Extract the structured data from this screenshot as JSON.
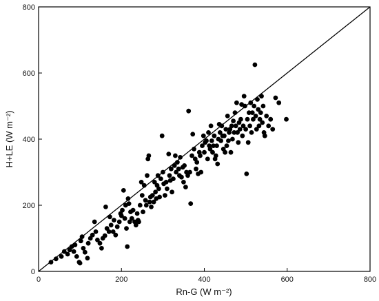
{
  "chart_data": {
    "type": "scatter",
    "title": "",
    "xlabel": "Rn-G (W m⁻²)",
    "ylabel": "H+LE (W m⁻²)",
    "xlim": [
      0,
      800
    ],
    "ylim": [
      0,
      800
    ],
    "xticks": [
      0,
      200,
      400,
      600,
      800
    ],
    "yticks": [
      0,
      200,
      400,
      600,
      800
    ],
    "grid": false,
    "legend": "none",
    "reference_line": {
      "type": "1:1",
      "from": [
        0,
        0
      ],
      "to": [
        800,
        800
      ]
    },
    "point_color": "#000000",
    "series": [
      {
        "points": [
          [
            30,
            28
          ],
          [
            42,
            38
          ],
          [
            55,
            45
          ],
          [
            62,
            60
          ],
          [
            70,
            52
          ],
          [
            75,
            65
          ],
          [
            80,
            75
          ],
          [
            85,
            60
          ],
          [
            88,
            80
          ],
          [
            92,
            45
          ],
          [
            98,
            28
          ],
          [
            100,
            25
          ],
          [
            102,
            92
          ],
          [
            105,
            105
          ],
          [
            108,
            70
          ],
          [
            112,
            58
          ],
          [
            118,
            40
          ],
          [
            120,
            85
          ],
          [
            125,
            100
          ],
          [
            130,
            110
          ],
          [
            135,
            150
          ],
          [
            138,
            120
          ],
          [
            142,
            95
          ],
          [
            148,
            85
          ],
          [
            152,
            70
          ],
          [
            155,
            100
          ],
          [
            160,
            108
          ],
          [
            162,
            195
          ],
          [
            165,
            130
          ],
          [
            170,
            120
          ],
          [
            172,
            165
          ],
          [
            175,
            140
          ],
          [
            180,
            120
          ],
          [
            182,
            155
          ],
          [
            186,
            110
          ],
          [
            190,
            135
          ],
          [
            195,
            150
          ],
          [
            198,
            175
          ],
          [
            200,
            168
          ],
          [
            202,
            185
          ],
          [
            205,
            245
          ],
          [
            208,
            160
          ],
          [
            210,
            200
          ],
          [
            212,
            130
          ],
          [
            214,
            75
          ],
          [
            216,
            220
          ],
          [
            218,
            205
          ],
          [
            220,
            150
          ],
          [
            222,
            180
          ],
          [
            225,
            160
          ],
          [
            228,
            185
          ],
          [
            232,
            150
          ],
          [
            235,
            140
          ],
          [
            238,
            175
          ],
          [
            240,
            155
          ],
          [
            242,
            150
          ],
          [
            245,
            200
          ],
          [
            248,
            270
          ],
          [
            250,
            230
          ],
          [
            252,
            180
          ],
          [
            255,
            260
          ],
          [
            258,
            215
          ],
          [
            260,
            200
          ],
          [
            262,
            290
          ],
          [
            264,
            340
          ],
          [
            266,
            350
          ],
          [
            268,
            210
          ],
          [
            270,
            225
          ],
          [
            272,
            195
          ],
          [
            275,
            230
          ],
          [
            278,
            210
          ],
          [
            280,
            270
          ],
          [
            282,
            240
          ],
          [
            284,
            220
          ],
          [
            286,
            260
          ],
          [
            288,
            290
          ],
          [
            290,
            250
          ],
          [
            292,
            225
          ],
          [
            295,
            280
          ],
          [
            298,
            410
          ],
          [
            300,
            300
          ],
          [
            302,
            265
          ],
          [
            305,
            230
          ],
          [
            308,
            270
          ],
          [
            310,
            250
          ],
          [
            314,
            355
          ],
          [
            316,
            290
          ],
          [
            318,
            275
          ],
          [
            320,
            310
          ],
          [
            322,
            240
          ],
          [
            325,
            280
          ],
          [
            328,
            320
          ],
          [
            330,
            350
          ],
          [
            332,
            300
          ],
          [
            335,
            330
          ],
          [
            338,
            310
          ],
          [
            340,
            290
          ],
          [
            342,
            345
          ],
          [
            345,
            285
          ],
          [
            348,
            315
          ],
          [
            350,
            270
          ],
          [
            352,
            320
          ],
          [
            355,
            255
          ],
          [
            357,
            300
          ],
          [
            360,
            290
          ],
          [
            362,
            485
          ],
          [
            365,
            300
          ],
          [
            367,
            205
          ],
          [
            370,
            350
          ],
          [
            372,
            415
          ],
          [
            375,
            370
          ],
          [
            378,
            340
          ],
          [
            380,
            310
          ],
          [
            382,
            330
          ],
          [
            385,
            295
          ],
          [
            388,
            360
          ],
          [
            390,
            350
          ],
          [
            392,
            300
          ],
          [
            395,
            380
          ],
          [
            398,
            410
          ],
          [
            400,
            360
          ],
          [
            402,
            390
          ],
          [
            405,
            395
          ],
          [
            408,
            340
          ],
          [
            410,
            420
          ],
          [
            412,
            380
          ],
          [
            414,
            370
          ],
          [
            416,
            440
          ],
          [
            418,
            395
          ],
          [
            420,
            360
          ],
          [
            422,
            380
          ],
          [
            424,
            410
          ],
          [
            426,
            340
          ],
          [
            428,
            350
          ],
          [
            430,
            380
          ],
          [
            432,
            325
          ],
          [
            434,
            400
          ],
          [
            436,
            445
          ],
          [
            438,
            420
          ],
          [
            440,
            395
          ],
          [
            442,
            440
          ],
          [
            444,
            410
          ],
          [
            446,
            370
          ],
          [
            448,
            410
          ],
          [
            450,
            360
          ],
          [
            452,
            430
          ],
          [
            454,
            380
          ],
          [
            456,
            470
          ],
          [
            458,
            395
          ],
          [
            460,
            420
          ],
          [
            462,
            430
          ],
          [
            464,
            360
          ],
          [
            466,
            440
          ],
          [
            468,
            400
          ],
          [
            470,
            455
          ],
          [
            472,
            420
          ],
          [
            474,
            480
          ],
          [
            476,
            440
          ],
          [
            478,
            510
          ],
          [
            480,
            420
          ],
          [
            482,
            390
          ],
          [
            484,
            450
          ],
          [
            486,
            430
          ],
          [
            488,
            460
          ],
          [
            490,
            505
          ],
          [
            492,
            410
          ],
          [
            494,
            440
          ],
          [
            496,
            530
          ],
          [
            498,
            500
          ],
          [
            500,
            430
          ],
          [
            502,
            295
          ],
          [
            504,
            460
          ],
          [
            506,
            390
          ],
          [
            508,
            480
          ],
          [
            510,
            440
          ],
          [
            512,
            510
          ],
          [
            514,
            420
          ],
          [
            516,
            480
          ],
          [
            518,
            460
          ],
          [
            520,
            500
          ],
          [
            522,
            625
          ],
          [
            524,
            470
          ],
          [
            526,
            430
          ],
          [
            528,
            520
          ],
          [
            530,
            490
          ],
          [
            532,
            440
          ],
          [
            534,
            460
          ],
          [
            536,
            480
          ],
          [
            538,
            530
          ],
          [
            540,
            450
          ],
          [
            542,
            500
          ],
          [
            544,
            420
          ],
          [
            546,
            410
          ],
          [
            550,
            470
          ],
          [
            555,
            440
          ],
          [
            560,
            460
          ],
          [
            565,
            430
          ],
          [
            572,
            525
          ],
          [
            580,
            510
          ],
          [
            598,
            460
          ]
        ]
      }
    ]
  }
}
